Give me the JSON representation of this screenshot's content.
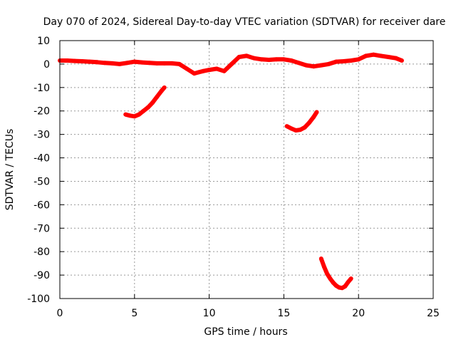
{
  "chart_data": {
    "type": "line",
    "title": "Day 070 of 2024, Sidereal Day-to-day VTEC variation (SDTVAR) for receiver dare",
    "xlabel": "GPS time / hours",
    "ylabel": "SDTVAR / TECUs",
    "xlim": [
      0,
      25
    ],
    "ylim": [
      -100,
      10
    ],
    "xticks": [
      0,
      5,
      10,
      15,
      20,
      25
    ],
    "yticks": [
      10,
      0,
      -10,
      -20,
      -30,
      -40,
      -50,
      -60,
      -70,
      -80,
      -90,
      -100
    ],
    "xtick_labels": [
      "0",
      "5",
      "10",
      "15",
      "20",
      "25"
    ],
    "ytick_labels": [
      "10",
      "0",
      "-10",
      "-20",
      "-30",
      "-40",
      "-50",
      "-60",
      "-70",
      "-80",
      "-90",
      "-100"
    ],
    "grid": true,
    "series_color": "#ff0000",
    "series": [
      {
        "name": "main",
        "x": [
          0,
          0.5,
          1,
          1.5,
          2,
          2.5,
          3,
          3.5,
          4,
          4.5,
          5,
          5.5,
          6,
          6.5,
          7,
          7.5,
          8,
          8.5,
          9,
          9.3,
          9.6,
          10,
          10.5,
          11,
          11.5,
          12,
          12.5,
          13,
          13.5,
          14,
          14.5,
          15,
          15.5,
          16,
          16.5,
          17,
          17.5,
          18,
          18.5,
          19,
          19.5,
          20,
          20.5,
          21,
          21.5,
          22,
          22.5,
          22.9
        ],
        "y": [
          1.5,
          1.5,
          1.3,
          1.2,
          1,
          0.8,
          0.5,
          0.3,
          0,
          0.5,
          1,
          0.7,
          0.5,
          0.3,
          0.3,
          0.3,
          0,
          -2,
          -4,
          -3.5,
          -3,
          -2.5,
          -2,
          -3,
          0,
          3,
          3.5,
          2.5,
          2,
          1.8,
          2,
          2,
          1.5,
          0.5,
          -0.5,
          -1,
          -0.5,
          0,
          1,
          1.2,
          1.5,
          2,
          3.5,
          4,
          3.5,
          3,
          2.5,
          1.5
        ]
      },
      {
        "name": "segment-1",
        "x": [
          4.4,
          4.7,
          5,
          5.3,
          5.6,
          5.9,
          6.2,
          6.5,
          6.8,
          7
        ],
        "y": [
          -21.5,
          -22,
          -22.3,
          -21.5,
          -20,
          -18.5,
          -16.5,
          -14,
          -11.5,
          -10
        ]
      },
      {
        "name": "segment-2",
        "x": [
          15.2,
          15.5,
          15.8,
          16.1,
          16.4,
          16.7,
          17,
          17.2
        ],
        "y": [
          -26.5,
          -27.5,
          -28.3,
          -28,
          -27,
          -25,
          -22.5,
          -20.5
        ]
      },
      {
        "name": "segment-3",
        "x": [
          17.5,
          17.7,
          17.9,
          18.1,
          18.3,
          18.5,
          18.7,
          18.9,
          19.1,
          19.3,
          19.5
        ],
        "y": [
          -83,
          -86.5,
          -89.5,
          -91.5,
          -93.2,
          -94.5,
          -95.3,
          -95.5,
          -94.8,
          -93,
          -91.5
        ]
      }
    ]
  }
}
